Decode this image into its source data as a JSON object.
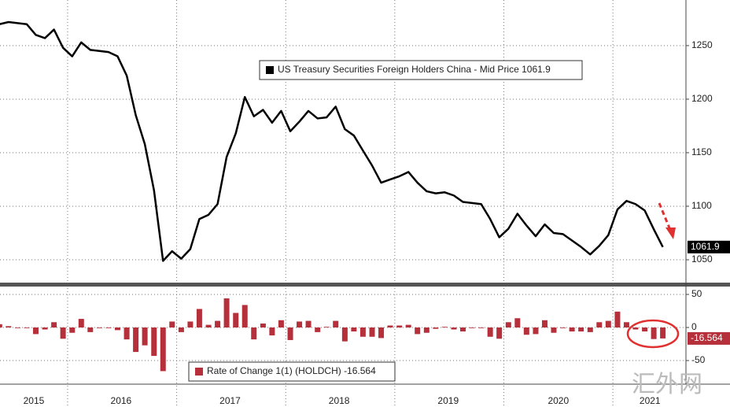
{
  "chart_data": [
    {
      "type": "line",
      "x": [
        2015.375,
        2015.458,
        2015.542,
        2015.625,
        2015.708,
        2015.792,
        2015.875,
        2015.958,
        2016.042,
        2016.125,
        2016.208,
        2016.292,
        2016.375,
        2016.458,
        2016.542,
        2016.625,
        2016.708,
        2016.792,
        2016.875,
        2016.958,
        2017.042,
        2017.125,
        2017.208,
        2017.292,
        2017.375,
        2017.458,
        2017.542,
        2017.625,
        2017.708,
        2017.792,
        2017.875,
        2017.958,
        2018.042,
        2018.125,
        2018.208,
        2018.292,
        2018.375,
        2018.458,
        2018.542,
        2018.625,
        2018.708,
        2018.792,
        2018.875,
        2018.958,
        2019.042,
        2019.125,
        2019.208,
        2019.292,
        2019.375,
        2019.458,
        2019.542,
        2019.625,
        2019.708,
        2019.792,
        2019.875,
        2019.958,
        2020.042,
        2020.125,
        2020.208,
        2020.292,
        2020.375,
        2020.458,
        2020.542,
        2020.625,
        2020.708,
        2020.792,
        2020.875,
        2020.958,
        2021.042,
        2021.125,
        2021.208,
        2021.292,
        2021.375,
        2021.458
      ],
      "series": [
        {
          "name": "US Treasury Securities Foreign Holders China - Mid Price 1061.9",
          "color": "#000000",
          "values": [
            1270,
            1272,
            1271,
            1270,
            1260,
            1257,
            1265,
            1248,
            1240,
            1253,
            1246,
            1245,
            1244,
            1240,
            1222,
            1185,
            1158,
            1115,
            1049,
            1058,
            1051,
            1060,
            1088,
            1092,
            1102,
            1146,
            1168,
            1202,
            1184,
            1190,
            1178,
            1189,
            1170,
            1179,
            1189,
            1182,
            1183,
            1193,
            1172,
            1166,
            1152,
            1138,
            1122,
            1125,
            1128,
            1132,
            1122,
            1114,
            1112,
            1113,
            1110,
            1104,
            1103,
            1102,
            1088,
            1071,
            1079,
            1093,
            1082,
            1072,
            1083,
            1075,
            1074,
            1068,
            1062,
            1055,
            1063,
            1073,
            1097,
            1105,
            1102,
            1096,
            1078.5,
            1061.9
          ]
        }
      ],
      "xlim": [
        2015.38,
        2021.67
      ],
      "xgrid": [
        2016,
        2017,
        2018,
        2019,
        2020,
        2021
      ],
      "ylim": [
        1029.4,
        1292.6
      ],
      "yticks": [
        1050,
        1100,
        1150,
        1200,
        1250
      ],
      "grid": true,
      "legend": "top-center"
    },
    {
      "type": "bar",
      "x": [
        2015.375,
        2015.458,
        2015.542,
        2015.625,
        2015.708,
        2015.792,
        2015.875,
        2015.958,
        2016.042,
        2016.125,
        2016.208,
        2016.292,
        2016.375,
        2016.458,
        2016.542,
        2016.625,
        2016.708,
        2016.792,
        2016.875,
        2016.958,
        2017.042,
        2017.125,
        2017.208,
        2017.292,
        2017.375,
        2017.458,
        2017.542,
        2017.625,
        2017.708,
        2017.792,
        2017.875,
        2017.958,
        2018.042,
        2018.125,
        2018.208,
        2018.292,
        2018.375,
        2018.458,
        2018.542,
        2018.625,
        2018.708,
        2018.792,
        2018.875,
        2018.958,
        2019.042,
        2019.125,
        2019.208,
        2019.292,
        2019.375,
        2019.458,
        2019.542,
        2019.625,
        2019.708,
        2019.792,
        2019.875,
        2019.958,
        2020.042,
        2020.125,
        2020.208,
        2020.292,
        2020.375,
        2020.458,
        2020.542,
        2020.625,
        2020.708,
        2020.792,
        2020.875,
        2020.958,
        2021.042,
        2021.125,
        2021.208,
        2021.292,
        2021.375,
        2021.458
      ],
      "series": [
        {
          "name": "Rate of Change 1(1) (HOLDCH) -16.564",
          "color": "#b5303b",
          "values": [
            5,
            2,
            -1,
            -1,
            -10,
            -3,
            8,
            -17,
            -8,
            13,
            -7,
            -1,
            -1,
            -4,
            -18,
            -37,
            -27,
            -43,
            -66,
            9,
            -7,
            9,
            28,
            4,
            10,
            44,
            22,
            34,
            -18,
            6,
            -12,
            11,
            -19,
            9,
            10,
            -7,
            1,
            10,
            -21,
            -6,
            -14,
            -14,
            -16,
            3,
            3,
            4,
            -10,
            -8,
            -2,
            1,
            -3,
            -6,
            -1,
            -1,
            -14,
            -17,
            8,
            14,
            -11,
            -10,
            11,
            -8,
            -1,
            -6,
            -6,
            -7,
            8,
            10,
            24,
            8,
            -3,
            -6,
            -17.5,
            -16.564
          ]
        }
      ],
      "xlim": [
        2015.38,
        2021.67
      ],
      "xgrid": [
        2016,
        2017,
        2018,
        2019,
        2020,
        2021
      ],
      "xticks": [
        {
          "value": 2015.69,
          "label": "2015"
        },
        {
          "value": 2016.49,
          "label": "2016"
        },
        {
          "value": 2017.49,
          "label": "2017"
        },
        {
          "value": 2018.49,
          "label": "2018"
        },
        {
          "value": 2019.49,
          "label": "2019"
        },
        {
          "value": 2020.5,
          "label": "2020"
        },
        {
          "value": 2021.34,
          "label": "2021"
        }
      ],
      "ylim": [
        -85.7,
        59.5
      ],
      "yticks": [
        -50,
        0,
        50
      ],
      "grid": true,
      "legend": "bottom-left"
    }
  ],
  "watermark": "汇外网"
}
